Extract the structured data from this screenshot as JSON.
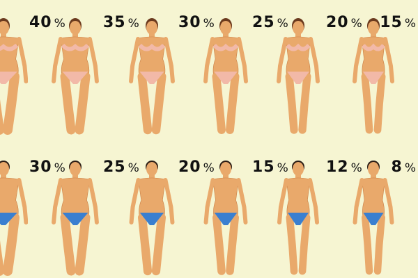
{
  "rows": [
    {
      "group": "women",
      "items": [
        {
          "label": "",
          "build": 1.0
        },
        {
          "label": "40",
          "build": 0.85
        },
        {
          "label": "35",
          "build": 0.75
        },
        {
          "label": "30",
          "build": 0.65
        },
        {
          "label": "25",
          "build": 0.55
        },
        {
          "label": "20",
          "build": 0.45
        },
        {
          "label": "15",
          "build": 0.4
        }
      ],
      "garment_color": "#f2b9a8"
    },
    {
      "group": "men",
      "items": [
        {
          "label": "",
          "build": 1.0
        },
        {
          "label": "30",
          "build": 0.85
        },
        {
          "label": "25",
          "build": 0.7
        },
        {
          "label": "20",
          "build": 0.6
        },
        {
          "label": "15",
          "build": 0.45
        },
        {
          "label": "12",
          "build": 0.4
        },
        {
          "label": "8",
          "build": 0.35
        }
      ],
      "garment_color": "#3a7fd0"
    }
  ],
  "percent_sign": "%",
  "colors": {
    "background": "#f6f5d2",
    "skin": "#e9a96b",
    "skin_shade": "#c97f45",
    "hair_women": "#6b3a1e",
    "hair_men": "#2a1c14"
  }
}
